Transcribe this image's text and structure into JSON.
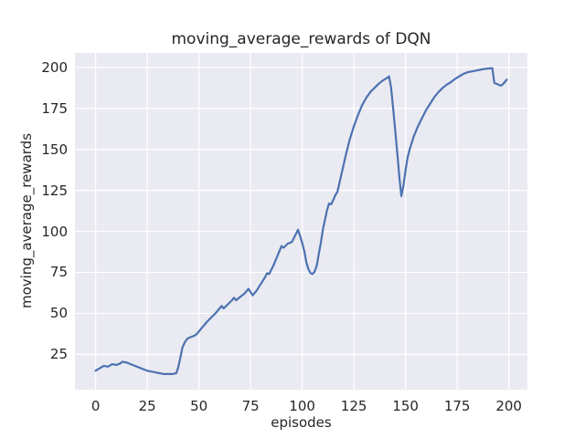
{
  "figure": {
    "background": "#ffffff",
    "plot_background": "#eaeaf2",
    "grid_color": "#ffffff",
    "text_color": "#262626"
  },
  "chart_data": {
    "type": "line",
    "title": "moving_average_rewards of DQN",
    "xlabel": "episodes",
    "ylabel": "moving_average_rewards",
    "grid": true,
    "legend_position": "none",
    "xlim": [
      -10,
      209
    ],
    "ylim": [
      3.5,
      208.8
    ],
    "xticks": [
      0,
      25,
      50,
      75,
      100,
      125,
      150,
      175,
      200
    ],
    "yticks": [
      25,
      50,
      75,
      100,
      125,
      150,
      175,
      200
    ],
    "series": [
      {
        "name": "moving_average_rewards",
        "color": "#4c72b0",
        "x": [
          0,
          2,
          4,
          6,
          8,
          10,
          12,
          13,
          15,
          17,
          19,
          21,
          23,
          25,
          27,
          29,
          31,
          33,
          35,
          37,
          39,
          40,
          41,
          42,
          43,
          44,
          45,
          46,
          47,
          48,
          49,
          50,
          52,
          54,
          56,
          58,
          60,
          61,
          62,
          64,
          66,
          67,
          68,
          70,
          72,
          74,
          75,
          76,
          78,
          80,
          82,
          83,
          84,
          86,
          88,
          90,
          91,
          93,
          95,
          96,
          98,
          99,
          100,
          101,
          102,
          103,
          104,
          105,
          106,
          107,
          108,
          109,
          110,
          111,
          112,
          113,
          114,
          115,
          116,
          117,
          119,
          121,
          123,
          125,
          127,
          129,
          131,
          133,
          135,
          137,
          139,
          141,
          142,
          143,
          144,
          145,
          146,
          147,
          148,
          149,
          150,
          151,
          152,
          154,
          156,
          158,
          160,
          162,
          164,
          166,
          168,
          170,
          172,
          174,
          176,
          178,
          180,
          182,
          184,
          186,
          188,
          190,
          192,
          193,
          194,
          195,
          196,
          197,
          198,
          199
        ],
        "y": [
          15,
          16.5,
          18,
          17.5,
          19,
          18.5,
          19.5,
          20.5,
          20,
          19,
          18,
          17,
          16,
          15,
          14.5,
          14,
          13.5,
          13,
          13,
          13,
          13.5,
          17,
          23,
          29,
          32,
          34,
          35,
          35.5,
          36,
          36.5,
          37.5,
          39,
          42,
          45,
          47.5,
          50,
          53,
          54.5,
          53,
          55.5,
          58,
          59.5,
          58,
          60,
          62,
          65,
          63,
          61,
          64,
          68,
          72,
          74.5,
          74,
          79,
          85,
          91,
          90,
          92.5,
          93.5,
          96,
          101,
          97,
          93,
          88,
          81,
          77,
          74.5,
          74,
          75.5,
          79,
          86,
          93,
          101,
          107,
          113,
          117,
          116.5,
          119,
          122,
          124,
          135,
          146,
          156,
          164,
          171,
          177,
          181.5,
          185,
          187.5,
          190,
          192,
          193.5,
          194.5,
          188,
          175,
          162,
          148,
          133,
          121.5,
          128,
          137,
          145,
          150,
          158,
          164,
          169,
          174,
          178,
          182,
          185,
          187.5,
          189.5,
          191,
          193,
          194.5,
          196,
          197,
          197.5,
          198,
          198.5,
          199,
          199.3,
          199.5,
          190.5,
          190,
          189.5,
          188.8,
          189.5,
          191,
          192.5
        ]
      }
    ]
  }
}
